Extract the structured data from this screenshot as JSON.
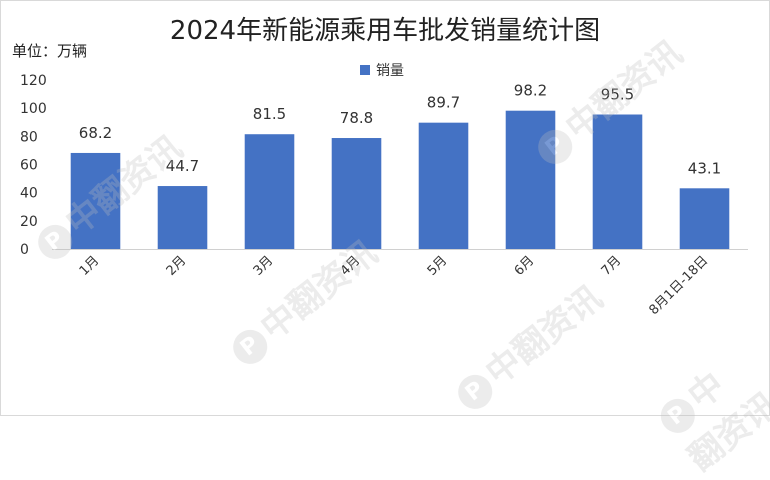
{
  "chart_data": {
    "type": "bar",
    "title": "2024年新能源乘用车批发销量统计图",
    "unit_label": "单位：万辆",
    "categories": [
      "1月",
      "2月",
      "3月",
      "4月",
      "5月",
      "6月",
      "7月",
      "8月1日-18日"
    ],
    "series": [
      {
        "name": "销量",
        "values": [
          68.2,
          44.7,
          81.5,
          78.8,
          89.7,
          98.2,
          95.5,
          43.1
        ],
        "color": "#4472c4"
      }
    ],
    "ylim": [
      0,
      120
    ],
    "yticks": [
      0,
      20,
      40,
      60,
      80,
      100,
      120
    ],
    "grid": false,
    "legend_position": "top-center"
  },
  "watermark": {
    "text": "中翻资讯",
    "logo_glyph": "P"
  }
}
